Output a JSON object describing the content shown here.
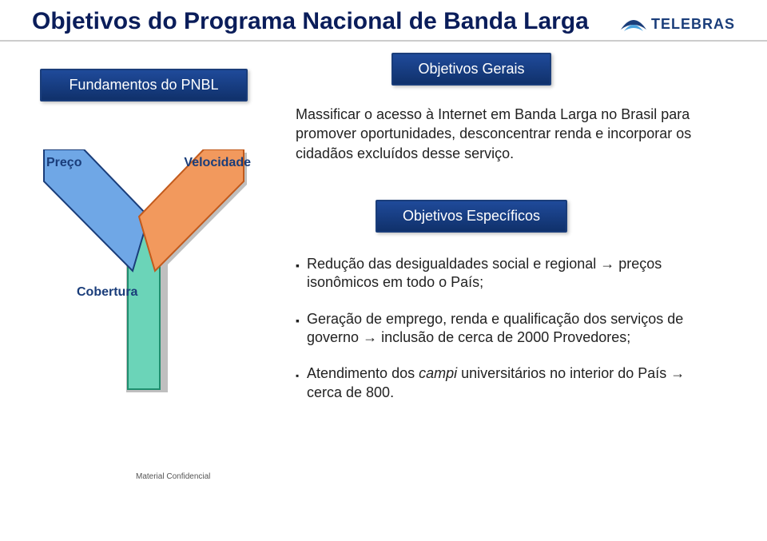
{
  "header": {
    "title": "Objetivos do Programa Nacional de Banda Larga",
    "logo_text": "TELEBRAS",
    "logo_color_primary": "#1a3d7a",
    "logo_color_accent": "#4aa3df",
    "border_color": "#cccccc"
  },
  "left": {
    "fundamentos_label": "Fundamentos do PNBL",
    "diagram": {
      "labels": {
        "preco": "Preço",
        "velocidade": "Velocidade",
        "cobertura": "Cobertura"
      },
      "shapes": {
        "left_arrow": {
          "fill": "#6fa7e6",
          "stroke": "#1a3d7a"
        },
        "right_arrow": {
          "fill": "#f2995d",
          "stroke": "#c25a1c"
        },
        "stem_arrow": {
          "fill": "#6bd4b8",
          "stroke": "#1f8e6e"
        }
      },
      "label_color": "#1a3d7a",
      "label_fontsize": 16
    }
  },
  "right": {
    "gerais": {
      "title": "Objetivos Gerais",
      "body": "Massificar o acesso à Internet em Banda Larga no Brasil para promover oportunidades, desconcentrar renda e incorporar os cidadãos excluídos desse serviço."
    },
    "especificos": {
      "title": "Objetivos Específicos",
      "item1_html": "Redução das desigualdades social e regional <span class=\"arrow\">&#8594;</span> preços isonômicos em todo o País;",
      "item2_html": "Geração de emprego, renda e qualificação dos serviços de governo <span class=\"arrow\">&#8594;</span> inclusão de cerca de 2000 Provedores;",
      "item3_html": "Atendimento dos <em>campi</em> universitários no interior do País <span class=\"arrow\">&#8594;</span> cerca de 800."
    }
  },
  "banner_style": {
    "bg_top": "#1f4a9a",
    "bg_bottom": "#10316b",
    "border": "#1a3d7a",
    "text_color": "#ffffff",
    "fontsize": 18
  },
  "body_text": {
    "color": "#222222",
    "fontsize": 18
  },
  "footer": {
    "text": "Material Confidencial",
    "color": "#555555",
    "fontsize": 10
  }
}
